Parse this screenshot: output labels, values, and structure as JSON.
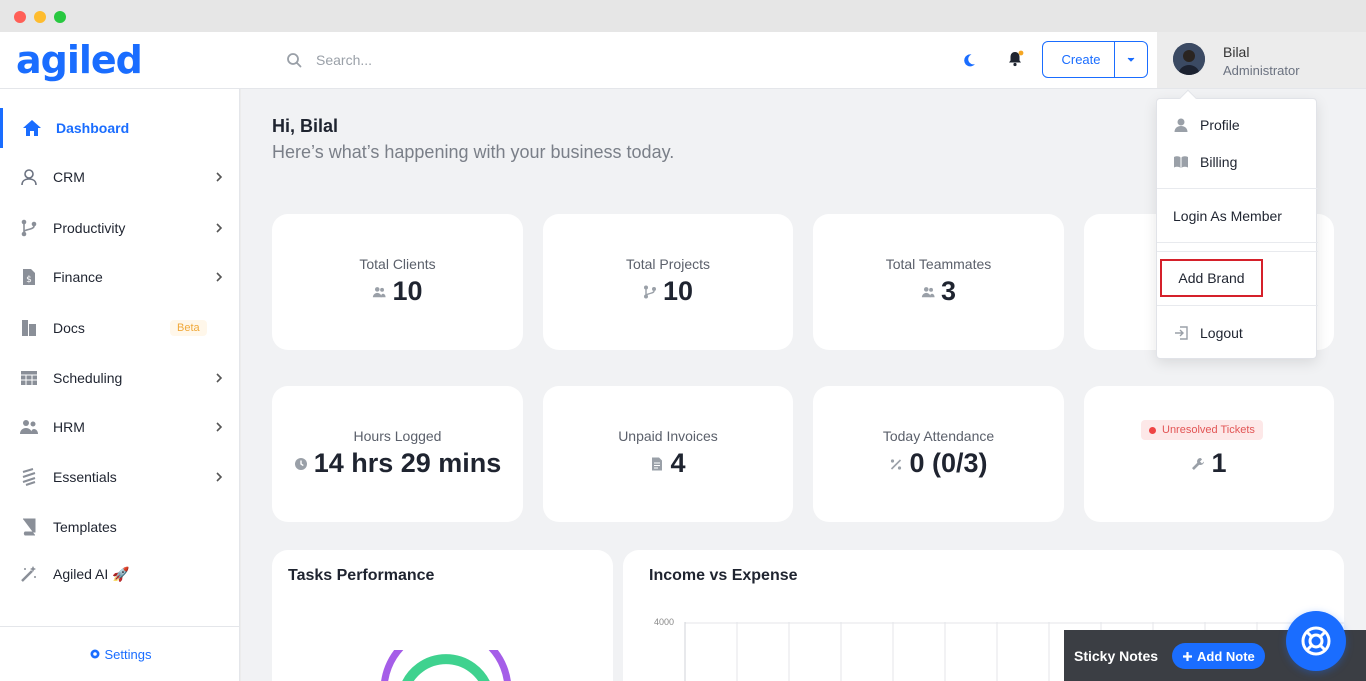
{
  "header": {
    "logo": "agiled",
    "search_placeholder": "Search...",
    "create_label": "Create",
    "user": {
      "name": "Bilal",
      "role": "Administrator"
    }
  },
  "sidebar": {
    "items": [
      {
        "label": "Dashboard",
        "icon": "home-icon",
        "active": true
      },
      {
        "label": "CRM",
        "icon": "user-icon"
      },
      {
        "label": "Productivity",
        "icon": "branch-icon"
      },
      {
        "label": "Finance",
        "icon": "dollar-file-icon"
      },
      {
        "label": "Docs",
        "icon": "docs-icon",
        "badge": "Beta"
      },
      {
        "label": "Scheduling",
        "icon": "calendar-icon"
      },
      {
        "label": "HRM",
        "icon": "users-icon"
      },
      {
        "label": "Essentials",
        "icon": "layers-icon"
      },
      {
        "label": "Templates",
        "icon": "book-icon"
      },
      {
        "label": "Agiled AI 🚀",
        "icon": "magic-wand-icon"
      }
    ],
    "settings_label": "Settings"
  },
  "main": {
    "greeting": "Hi, Bilal",
    "subtitle": "Here’s what’s happening with your business today.",
    "stats": [
      {
        "title": "Total Clients",
        "value": "10",
        "icon": "users-icon"
      },
      {
        "title": "Total Projects",
        "value": "10",
        "icon": "branch-icon"
      },
      {
        "title": "Total Teammates",
        "value": "3",
        "icon": "users-icon"
      },
      {
        "title": "Hours Logged",
        "value": "14 hrs 29 mins",
        "icon": "clock-icon"
      },
      {
        "title": "Unpaid Invoices",
        "value": "4",
        "icon": "file-icon"
      },
      {
        "title": "Today Attendance",
        "value": "0 (0/3)",
        "icon": "percent-icon"
      },
      {
        "title": "Unresolved Tickets",
        "value": "1",
        "icon": "wrench-icon"
      }
    ],
    "panels": {
      "tasks_title": "Tasks Performance",
      "income_title": "Income vs Expense",
      "income_y_top": "4000"
    }
  },
  "dropdown": {
    "items": [
      "Profile",
      "Billing",
      "Login As Member",
      "Add Brand",
      "Logout"
    ]
  },
  "sticky": {
    "label": "Sticky Notes",
    "button": "Add Note"
  },
  "colors": {
    "accent": "#1a6dff",
    "highlight": "#d5202a",
    "danger": "#ef4444"
  }
}
